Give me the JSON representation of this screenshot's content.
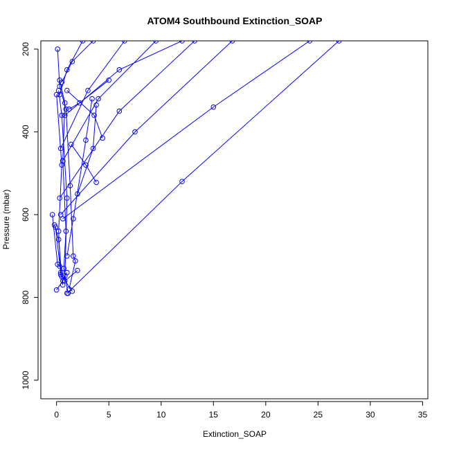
{
  "chart_data": {
    "type": "line",
    "title": "ATOM4 Southbound Extinction_SOAP",
    "xlabel": "Extinction_SOAP",
    "ylabel": "Pressure (mbar)",
    "xlim": [
      -1.5,
      35.5
    ],
    "ylim": [
      1045,
      180
    ],
    "y_reversed": true,
    "x_ticks": [
      0,
      5,
      10,
      15,
      20,
      25,
      30,
      35
    ],
    "x_tick_labels": [
      "0",
      "5",
      "10",
      "15",
      "20",
      "25",
      "30",
      "35"
    ],
    "y_ticks": [
      200,
      400,
      600,
      800,
      1000
    ],
    "y_tick_labels": [
      "200",
      "400",
      "600",
      "800",
      "1000"
    ],
    "grid": false,
    "marker": "open-circle",
    "colors": {
      "main": "#0000ff",
      "axis": "#000000"
    },
    "series": [
      {
        "values": [
          [
            0.1,
            200
          ],
          [
            0.3,
            290
          ],
          [
            0.9,
            345
          ],
          [
            1.3,
            530
          ],
          [
            1.6,
            700
          ],
          [
            1.8,
            712
          ],
          [
            1.2,
            780
          ]
        ]
      },
      {
        "values": [
          [
            0.0,
            310
          ],
          [
            0.5,
            480
          ],
          [
            0.2,
            640
          ],
          [
            0.4,
            745
          ],
          [
            1.5,
            785
          ]
        ]
      },
      {
        "values": [
          [
            0.3,
            275
          ],
          [
            0.8,
            330
          ],
          [
            0.6,
            470
          ],
          [
            0.9,
            640
          ],
          [
            0.7,
            730
          ],
          [
            1.1,
            790
          ]
        ]
      },
      {
        "values": [
          [
            0.2,
            300
          ],
          [
            0.5,
            360
          ],
          [
            1.0,
            560
          ],
          [
            0.8,
            760
          ],
          [
            2.0,
            735
          ]
        ]
      },
      {
        "values": [
          [
            -0.1,
            630
          ],
          [
            0.4,
            740
          ],
          [
            0.6,
            770
          ]
        ]
      },
      {
        "values": [
          [
            -0.2,
            625
          ],
          [
            0.2,
            660
          ],
          [
            0.5,
            750
          ]
        ]
      },
      {
        "values": [
          [
            -0.4,
            600
          ],
          [
            0.1,
            720
          ],
          [
            0.3,
            725
          ]
        ]
      },
      {
        "values": [
          [
            0.0,
            782
          ],
          [
            0.6,
            760
          ],
          [
            0.8,
            748
          ],
          [
            1.0,
            740
          ]
        ]
      },
      {
        "values": [
          [
            3.4,
            320
          ],
          [
            2.8,
            420
          ],
          [
            1.6,
            610
          ],
          [
            1.0,
            700
          ]
        ]
      },
      {
        "values": [
          [
            3.8,
            335
          ],
          [
            3.5,
            440
          ],
          [
            2.0,
            550
          ]
        ]
      },
      {
        "values": [
          [
            4.4,
            415
          ],
          [
            3.6,
            360
          ],
          [
            1.0,
            300
          ]
        ]
      },
      {
        "values": [
          [
            5.0,
            275
          ],
          [
            2.2,
            330
          ],
          [
            1.2,
            345
          ]
        ]
      },
      {
        "values": [
          [
            3.8,
            522
          ],
          [
            2.8,
            480
          ],
          [
            1.4,
            430
          ]
        ]
      },
      {
        "values": [
          [
            0.3,
            310
          ],
          [
            1.0,
            250
          ],
          [
            2.5,
            180
          ]
        ]
      },
      {
        "values": [
          [
            0.5,
            280
          ],
          [
            1.5,
            230
          ],
          [
            3.5,
            180
          ]
        ]
      },
      {
        "values": [
          [
            0.4,
            440
          ],
          [
            3.0,
            300
          ],
          [
            6.5,
            180
          ]
        ]
      },
      {
        "values": [
          [
            0.6,
            470
          ],
          [
            4.0,
            320
          ],
          [
            9.5,
            180
          ]
        ]
      },
      {
        "values": [
          [
            0.8,
            360
          ],
          [
            6.0,
            250
          ],
          [
            12.0,
            180
          ]
        ]
      },
      {
        "values": [
          [
            0.3,
            560
          ],
          [
            6.0,
            350
          ],
          [
            13.2,
            180
          ]
        ]
      },
      {
        "values": [
          [
            0.4,
            600
          ],
          [
            7.5,
            400
          ],
          [
            16.8,
            180
          ]
        ]
      },
      {
        "values": [
          [
            0.6,
            610
          ],
          [
            15.0,
            340
          ],
          [
            24.2,
            180
          ]
        ]
      },
      {
        "values": [
          [
            1.0,
            790
          ],
          [
            12.0,
            520
          ],
          [
            27.0,
            180
          ]
        ]
      }
    ]
  }
}
